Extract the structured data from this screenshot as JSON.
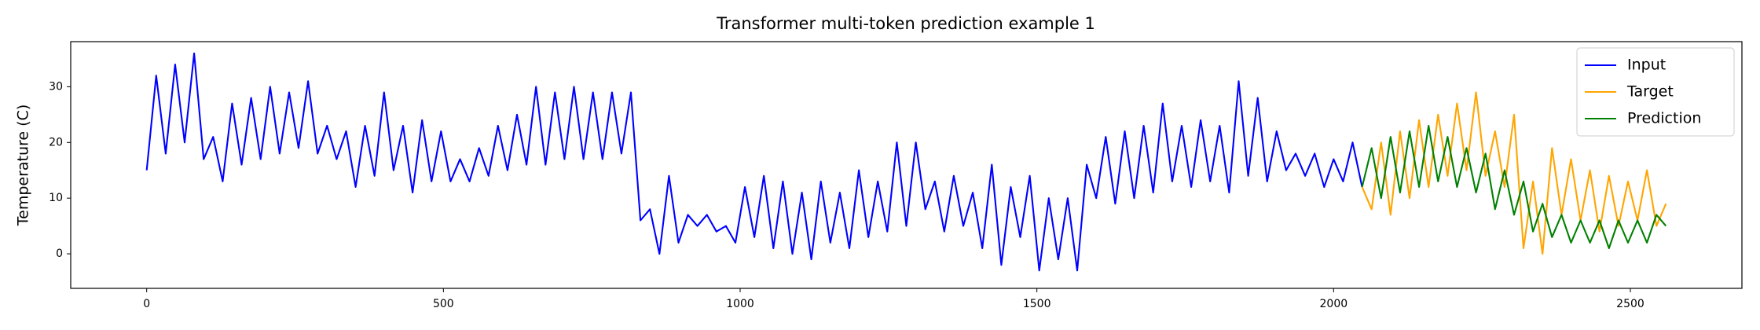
{
  "chart_data": {
    "type": "line",
    "title": "Transformer multi-token prediction example 1",
    "ylabel": "Temperature (C)",
    "x": [
      0,
      16,
      32,
      48,
      64,
      80,
      96,
      112,
      128,
      144,
      160,
      176,
      192,
      208,
      224,
      240,
      256,
      272,
      288,
      304,
      320,
      336,
      352,
      368,
      384,
      400,
      416,
      432,
      448,
      464,
      480,
      496,
      512,
      528,
      544,
      560,
      576,
      592,
      608,
      624,
      640,
      656,
      672,
      688,
      704,
      720,
      736,
      752,
      768,
      784,
      800,
      816,
      832,
      848,
      864,
      880,
      896,
      912,
      928,
      944,
      960,
      976,
      992,
      1008,
      1024,
      1040,
      1056,
      1072,
      1088,
      1104,
      1120,
      1136,
      1152,
      1168,
      1184,
      1200,
      1216,
      1232,
      1248,
      1264,
      1280,
      1296,
      1312,
      1328,
      1344,
      1360,
      1376,
      1392,
      1408,
      1424,
      1440,
      1456,
      1472,
      1488,
      1504,
      1520,
      1536,
      1552,
      1568,
      1584,
      1600,
      1616,
      1632,
      1648,
      1664,
      1680,
      1696,
      1712,
      1728,
      1744,
      1760,
      1776,
      1792,
      1808,
      1824,
      1840,
      1856,
      1872,
      1888,
      1904,
      1920,
      1936,
      1952,
      1968,
      1984,
      2000,
      2016,
      2032,
      2048,
      2064,
      2080,
      2096,
      2112,
      2128,
      2144,
      2160,
      2176,
      2192,
      2208,
      2224,
      2240,
      2256,
      2272,
      2288,
      2304,
      2320,
      2336,
      2352,
      2368,
      2384,
      2400,
      2416,
      2432,
      2448,
      2464,
      2480,
      2496,
      2512,
      2528,
      2544,
      2560
    ],
    "series": [
      {
        "name": "Input",
        "color": "#0000ff",
        "values": [
          15,
          32,
          18,
          34,
          20,
          36,
          17,
          21,
          13,
          27,
          16,
          28,
          17,
          30,
          18,
          29,
          19,
          31,
          18,
          23,
          17,
          22,
          12,
          23,
          14,
          29,
          15,
          23,
          11,
          24,
          13,
          22,
          13,
          17,
          13,
          19,
          14,
          23,
          15,
          25,
          16,
          30,
          16,
          29,
          17,
          30,
          17,
          29,
          17,
          29,
          18,
          29,
          6,
          8,
          0,
          14,
          2,
          7,
          5,
          7,
          4,
          5,
          2,
          12,
          3,
          14,
          1,
          13,
          0,
          11,
          -1,
          13,
          2,
          11,
          1,
          15,
          3,
          13,
          4,
          20,
          5,
          20,
          8,
          13,
          4,
          14,
          5,
          11,
          1,
          16,
          -2,
          12,
          3,
          14,
          -3,
          10,
          -1,
          10,
          -3,
          16,
          10,
          21,
          9,
          22,
          10,
          23,
          11,
          27,
          13,
          23,
          12,
          24,
          13,
          23,
          11,
          31,
          14,
          28,
          13,
          22,
          15,
          18,
          14,
          18,
          12,
          17,
          13,
          20,
          12,
          null,
          null,
          null,
          null,
          null,
          null,
          null,
          null,
          null,
          null,
          null,
          null,
          null,
          null,
          null,
          null,
          null,
          null,
          null,
          null,
          null,
          null,
          null,
          null,
          null,
          null,
          null,
          null,
          null,
          null,
          null,
          null
        ]
      },
      {
        "name": "Target",
        "color": "#ffa500",
        "values": [
          null,
          null,
          null,
          null,
          null,
          null,
          null,
          null,
          null,
          null,
          null,
          null,
          null,
          null,
          null,
          null,
          null,
          null,
          null,
          null,
          null,
          null,
          null,
          null,
          null,
          null,
          null,
          null,
          null,
          null,
          null,
          null,
          null,
          null,
          null,
          null,
          null,
          null,
          null,
          null,
          null,
          null,
          null,
          null,
          null,
          null,
          null,
          null,
          null,
          null,
          null,
          null,
          null,
          null,
          null,
          null,
          null,
          null,
          null,
          null,
          null,
          null,
          null,
          null,
          null,
          null,
          null,
          null,
          null,
          null,
          null,
          null,
          null,
          null,
          null,
          null,
          null,
          null,
          null,
          null,
          null,
          null,
          null,
          null,
          null,
          null,
          null,
          null,
          null,
          null,
          null,
          null,
          null,
          null,
          null,
          null,
          null,
          null,
          null,
          null,
          null,
          null,
          null,
          null,
          null,
          null,
          null,
          null,
          null,
          null,
          null,
          null,
          null,
          null,
          null,
          null,
          null,
          null,
          null,
          null,
          null,
          null,
          null,
          null,
          null,
          null,
          null,
          null,
          12,
          8,
          20,
          7,
          22,
          10,
          24,
          12,
          25,
          14,
          27,
          15,
          29,
          14,
          22,
          12,
          25,
          1,
          13,
          0,
          19,
          7,
          17,
          6,
          15,
          4,
          14,
          5,
          13,
          6,
          15,
          5,
          9
        ]
      },
      {
        "name": "Prediction",
        "color": "#008000",
        "values": [
          null,
          null,
          null,
          null,
          null,
          null,
          null,
          null,
          null,
          null,
          null,
          null,
          null,
          null,
          null,
          null,
          null,
          null,
          null,
          null,
          null,
          null,
          null,
          null,
          null,
          null,
          null,
          null,
          null,
          null,
          null,
          null,
          null,
          null,
          null,
          null,
          null,
          null,
          null,
          null,
          null,
          null,
          null,
          null,
          null,
          null,
          null,
          null,
          null,
          null,
          null,
          null,
          null,
          null,
          null,
          null,
          null,
          null,
          null,
          null,
          null,
          null,
          null,
          null,
          null,
          null,
          null,
          null,
          null,
          null,
          null,
          null,
          null,
          null,
          null,
          null,
          null,
          null,
          null,
          null,
          null,
          null,
          null,
          null,
          null,
          null,
          null,
          null,
          null,
          null,
          null,
          null,
          null,
          null,
          null,
          null,
          null,
          null,
          null,
          null,
          null,
          null,
          null,
          null,
          null,
          null,
          null,
          null,
          null,
          null,
          null,
          null,
          null,
          null,
          null,
          null,
          null,
          null,
          null,
          null,
          null,
          null,
          null,
          null,
          null,
          null,
          null,
          null,
          12,
          19,
          10,
          21,
          11,
          22,
          12,
          23,
          13,
          21,
          12,
          19,
          11,
          18,
          8,
          15,
          7,
          13,
          4,
          9,
          3,
          7,
          2,
          6,
          2,
          6,
          1,
          6,
          2,
          6,
          2,
          7,
          5
        ]
      }
    ],
    "xlim": [
      -128,
      2688
    ],
    "ylim": [
      -6.2,
      38.1
    ],
    "xticks": [
      0,
      500,
      1000,
      1500,
      2000,
      2500
    ],
    "yticks": [
      0,
      10,
      20,
      30
    ],
    "legend": "upper right",
    "grid": false
  }
}
